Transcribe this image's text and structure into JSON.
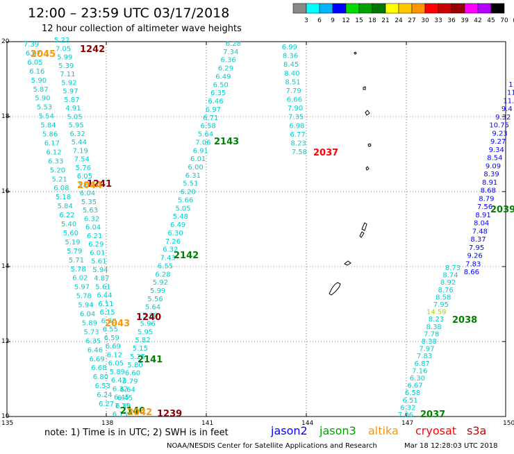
{
  "title": "12:00 – 23:59 UTC 03/17/2018",
  "subtitle": "12 hour collection of altimeter wave heights",
  "colorbar": {
    "colors": [
      "#888888",
      "#00ffff",
      "#00b4ff",
      "#0000ff",
      "#00dc00",
      "#00a000",
      "#007800",
      "#ffff00",
      "#ffc800",
      "#ff9600",
      "#ff0000",
      "#c80000",
      "#960000",
      "#ff00ff",
      "#b400ff",
      "#000000"
    ],
    "labels": [
      "3",
      "6",
      "9",
      "12",
      "15",
      "18",
      "21",
      "24",
      "27",
      "30",
      "33",
      "36",
      "39",
      "42",
      "45",
      "70",
      "(ft)"
    ]
  },
  "axes": {
    "lon_labels": [
      "135",
      "138",
      "141",
      "144",
      "147",
      "150"
    ],
    "lat_labels": [
      "20",
      "18",
      "16",
      "14",
      "12",
      "10"
    ]
  },
  "notes": {
    "note_text": "note:  1) Time is in UTC;  2) SWH is in feet",
    "satellites": [
      {
        "name": "jason2",
        "color": "#0000ff"
      },
      {
        "name": "jason3",
        "color": "#00a000"
      },
      {
        "name": "altika",
        "color": "#ff9600"
      },
      {
        "name": "cryosat",
        "color": "#ff0000"
      },
      {
        "name": "s3a",
        "color": "#c80000"
      }
    ],
    "credit": "NOAA/NESDIS Center for Satellite Applications and Research",
    "timestamp": "Mar 18 12:28:03 UTC 2018"
  },
  "pass_labels": [
    {
      "text": "1242",
      "color": "#8b0000"
    },
    {
      "text": "2045",
      "color": "#ff9600"
    },
    {
      "text": "1241",
      "color": "#8b0000"
    },
    {
      "text": "2044",
      "color": "#ff9600"
    },
    {
      "text": "2143",
      "color": "#008000"
    },
    {
      "text": "2142",
      "color": "#008000"
    },
    {
      "text": "2037",
      "color": "#ff0000"
    },
    {
      "text": "2039",
      "color": "#008000"
    },
    {
      "text": "1240",
      "color": "#8b0000"
    },
    {
      "text": "2043",
      "color": "#ff9600"
    },
    {
      "text": "2141",
      "color": "#008000"
    },
    {
      "text": "2038",
      "color": "#008000"
    },
    {
      "text": "2140",
      "color": "#008000"
    },
    {
      "text": "2042",
      "color": "#ff9600"
    },
    {
      "text": "1239",
      "color": "#8b0000"
    },
    {
      "text": "2037",
      "color": "#008000"
    }
  ],
  "tracks": [
    {
      "name": "track-a",
      "color": "#00cccc",
      "values": [
        "7.39",
        "6.67",
        "6.05",
        "6.16",
        "5.90",
        "5.87",
        "5.90",
        "5.53",
        "5.54",
        "5.84",
        "5.86",
        "6.17",
        "6.12",
        "6.33",
        "5.20",
        "5.21",
        "6.08",
        "5.18",
        "5.84",
        "6.22",
        "5.40",
        "5.60",
        "5.19",
        "5.79",
        "5.71",
        "5.78",
        "6.02",
        "5.97",
        "5.78",
        "5.94",
        "6.04",
        "5.89",
        "5.73",
        "6.35",
        "6.46",
        "6.69",
        "6.68",
        "6.80",
        "6.53",
        "6.24",
        "6.27"
      ]
    },
    {
      "name": "track-b",
      "color": "#00cccc",
      "values": [
        "5.22",
        "7.05",
        "5.99",
        "5.39",
        "7.11",
        "5.92",
        "5.97",
        "5.87",
        "4.91",
        "5.05",
        "5.95",
        "6.32",
        "5.44",
        "7.19",
        "7.54",
        "5.76",
        "6.05",
        "5.66",
        "6.04",
        "5.35",
        "5.63",
        "6.32",
        "6.04",
        "6.21",
        "6.29",
        "6.01",
        "5.61",
        "5.94",
        "4.87",
        "5.61",
        "6.44",
        "6.11",
        "6.15",
        "6.30",
        "6.55",
        "6.59",
        "6.69",
        "6.12",
        "6.05",
        "5.89",
        "6.42",
        "6.32",
        "6.45",
        "6.30"
      ]
    },
    {
      "name": "track-c",
      "color": "#00cccc",
      "values": [
        "6.28",
        "7.34",
        "6.36",
        "6.29",
        "6.49",
        "6.50",
        "6.35",
        "6.46",
        "6.97",
        "6.71",
        "6.58",
        "5.64",
        "7.06",
        "6.91",
        "6.01",
        "6.00",
        "6.31",
        "5.51",
        "6.20",
        "5.66",
        "5.05",
        "5.48",
        "6.49",
        "6.30",
        "7.26",
        "6.32",
        "7.43",
        "6.55",
        "6.28",
        "5.92",
        "5.99",
        "5.56",
        "5.64",
        "5.90",
        "5.96",
        "5.95",
        "5.82",
        "5.15",
        "5.25",
        "5.80",
        "6.60",
        "5.79",
        "6.64",
        "6.45",
        "7.15",
        "6.15"
      ]
    },
    {
      "name": "track-d",
      "color": "#00cccc",
      "values": [
        "6.99",
        "8.36",
        "8.45",
        "8.40",
        "8.51",
        "7.79",
        "6.66",
        "7.90",
        "7.35",
        "6.98",
        "6.77",
        "8.23",
        "7.58"
      ]
    },
    {
      "name": "track-e",
      "color": "#00cccc",
      "values": [
        "8.73",
        "8.74",
        "8.92",
        "8.76",
        "8.58",
        "7.95",
        "14.59",
        "8.23",
        "8.38",
        "7.78",
        "8.38",
        "7.97",
        "7.83",
        "6.87",
        "7.16",
        "6.30",
        "6.67",
        "6.58",
        "6.51",
        "6.32",
        "7.06"
      ]
    },
    {
      "name": "track-f",
      "color": "#0000ff",
      "values": [
        "11",
        "11",
        "11.",
        "9.4",
        "9.32",
        "10.75",
        "9.23",
        "9.27",
        "9.34",
        "8.54",
        "9.09",
        "8.39",
        "8.91",
        "8.68",
        "8.79",
        "7.56",
        "8.91",
        "8.04",
        "7.48",
        "8.37",
        "7.95",
        "9.26",
        "7.83",
        "8.66"
      ]
    }
  ]
}
